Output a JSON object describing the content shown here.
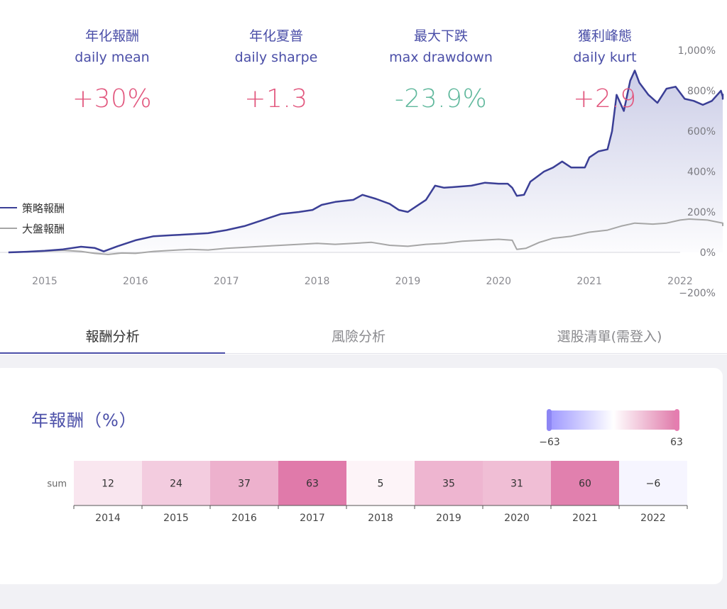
{
  "stats": [
    {
      "zh": "年化報酬",
      "en": "daily mean",
      "value": "+30%",
      "color": "#e2577e"
    },
    {
      "zh": "年化夏普",
      "en": "daily sharpe",
      "value": "+1.3",
      "color": "#e2577e"
    },
    {
      "zh": "最大下跌",
      "en": "max drawdown",
      "value": "-23.9%",
      "color": "#5fb89c"
    },
    {
      "zh": "獲利峰態",
      "en": "daily kurt",
      "value": "+2.9",
      "color": "#e2577e"
    }
  ],
  "tabs": [
    {
      "label": "報酬分析",
      "active": true
    },
    {
      "label": "風險分析",
      "active": false
    },
    {
      "label": "選股清單(需登入)",
      "active": false
    }
  ],
  "chart_data": [
    {
      "type": "line",
      "y_unit": "%",
      "x_tick_labels": [
        "2015",
        "2016",
        "2017",
        "2018",
        "2019",
        "2020",
        "2021",
        "2022"
      ],
      "y_tick_labels": [
        "1,000%",
        "800%",
        "600%",
        "400%",
        "200%",
        "0%",
        "−200%"
      ],
      "ylim": [
        -200,
        1000
      ],
      "xlim": [
        2014.6,
        2022.75
      ],
      "grid": false,
      "legend_position": "left",
      "colors": {
        "strategy": "#3b3f96",
        "market": "#a6a6a6",
        "fill": "#c9cbe6"
      },
      "series": [
        {
          "name": "策略報酬",
          "points": [
            [
              2014.6,
              0
            ],
            [
              2014.8,
              3
            ],
            [
              2015.0,
              8
            ],
            [
              2015.2,
              15
            ],
            [
              2015.4,
              28
            ],
            [
              2015.55,
              22
            ],
            [
              2015.65,
              5
            ],
            [
              2015.8,
              30
            ],
            [
              2016.0,
              60
            ],
            [
              2016.2,
              80
            ],
            [
              2016.4,
              85
            ],
            [
              2016.6,
              90
            ],
            [
              2016.8,
              95
            ],
            [
              2017.0,
              110
            ],
            [
              2017.2,
              130
            ],
            [
              2017.4,
              160
            ],
            [
              2017.6,
              190
            ],
            [
              2017.8,
              200
            ],
            [
              2017.95,
              210
            ],
            [
              2018.05,
              235
            ],
            [
              2018.2,
              250
            ],
            [
              2018.4,
              260
            ],
            [
              2018.5,
              285
            ],
            [
              2018.65,
              265
            ],
            [
              2018.8,
              240
            ],
            [
              2018.9,
              210
            ],
            [
              2019.0,
              200
            ],
            [
              2019.1,
              230
            ],
            [
              2019.2,
              260
            ],
            [
              2019.3,
              330
            ],
            [
              2019.4,
              320
            ],
            [
              2019.55,
              325
            ],
            [
              2019.7,
              330
            ],
            [
              2019.85,
              345
            ],
            [
              2020.0,
              340
            ],
            [
              2020.1,
              340
            ],
            [
              2020.15,
              320
            ],
            [
              2020.2,
              280
            ],
            [
              2020.28,
              285
            ],
            [
              2020.35,
              350
            ],
            [
              2020.5,
              400
            ],
            [
              2020.6,
              420
            ],
            [
              2020.7,
              450
            ],
            [
              2020.8,
              420
            ],
            [
              2020.95,
              420
            ],
            [
              2021.0,
              470
            ],
            [
              2021.1,
              500
            ],
            [
              2021.2,
              510
            ],
            [
              2021.25,
              600
            ],
            [
              2021.3,
              780
            ],
            [
              2021.38,
              700
            ],
            [
              2021.45,
              850
            ],
            [
              2021.5,
              900
            ],
            [
              2021.55,
              840
            ],
            [
              2021.65,
              780
            ],
            [
              2021.75,
              740
            ],
            [
              2021.85,
              810
            ],
            [
              2021.95,
              820
            ],
            [
              2022.05,
              760
            ],
            [
              2022.15,
              750
            ],
            [
              2022.25,
              730
            ],
            [
              2022.35,
              750
            ],
            [
              2022.45,
              800
            ],
            [
              2022.55,
              770
            ],
            [
              2022.65,
              760
            ],
            [
              2022.72,
              785
            ]
          ]
        },
        {
          "name": "大盤報酬",
          "points": [
            [
              2014.6,
              0
            ],
            [
              2014.8,
              2
            ],
            [
              2015.0,
              6
            ],
            [
              2015.2,
              10
            ],
            [
              2015.4,
              5
            ],
            [
              2015.55,
              -5
            ],
            [
              2015.7,
              -10
            ],
            [
              2015.85,
              -3
            ],
            [
              2016.0,
              -5
            ],
            [
              2016.2,
              5
            ],
            [
              2016.4,
              10
            ],
            [
              2016.6,
              15
            ],
            [
              2016.8,
              12
            ],
            [
              2017.0,
              20
            ],
            [
              2017.2,
              25
            ],
            [
              2017.4,
              30
            ],
            [
              2017.6,
              35
            ],
            [
              2017.8,
              40
            ],
            [
              2018.0,
              45
            ],
            [
              2018.2,
              40
            ],
            [
              2018.4,
              45
            ],
            [
              2018.6,
              50
            ],
            [
              2018.8,
              35
            ],
            [
              2019.0,
              30
            ],
            [
              2019.2,
              40
            ],
            [
              2019.4,
              45
            ],
            [
              2019.6,
              55
            ],
            [
              2019.8,
              60
            ],
            [
              2020.0,
              65
            ],
            [
              2020.15,
              60
            ],
            [
              2020.2,
              15
            ],
            [
              2020.3,
              20
            ],
            [
              2020.45,
              50
            ],
            [
              2020.6,
              70
            ],
            [
              2020.8,
              80
            ],
            [
              2021.0,
              100
            ],
            [
              2021.2,
              110
            ],
            [
              2021.35,
              130
            ],
            [
              2021.5,
              145
            ],
            [
              2021.7,
              140
            ],
            [
              2021.85,
              145
            ],
            [
              2022.0,
              160
            ],
            [
              2022.1,
              165
            ],
            [
              2022.3,
              160
            ],
            [
              2022.5,
              145
            ],
            [
              2022.6,
              135
            ],
            [
              2022.72,
              130
            ]
          ]
        }
      ]
    },
    {
      "type": "heatmap",
      "title": "年報酬（%）",
      "row_label": "sum",
      "categories": [
        "2014",
        "2015",
        "2016",
        "2017",
        "2018",
        "2019",
        "2020",
        "2021",
        "2022"
      ],
      "values": [
        12,
        24,
        37,
        63,
        5,
        35,
        31,
        60,
        -6
      ],
      "color_range": [
        -63,
        63
      ],
      "color_range_labels": [
        "−63",
        "63"
      ],
      "colors": {
        "low": "#9e98ff",
        "mid": "#ffffff",
        "high": "#e07aaa",
        "legend_handle_low": "#8d86f4",
        "legend_handle_high": "#e57db0"
      }
    }
  ]
}
